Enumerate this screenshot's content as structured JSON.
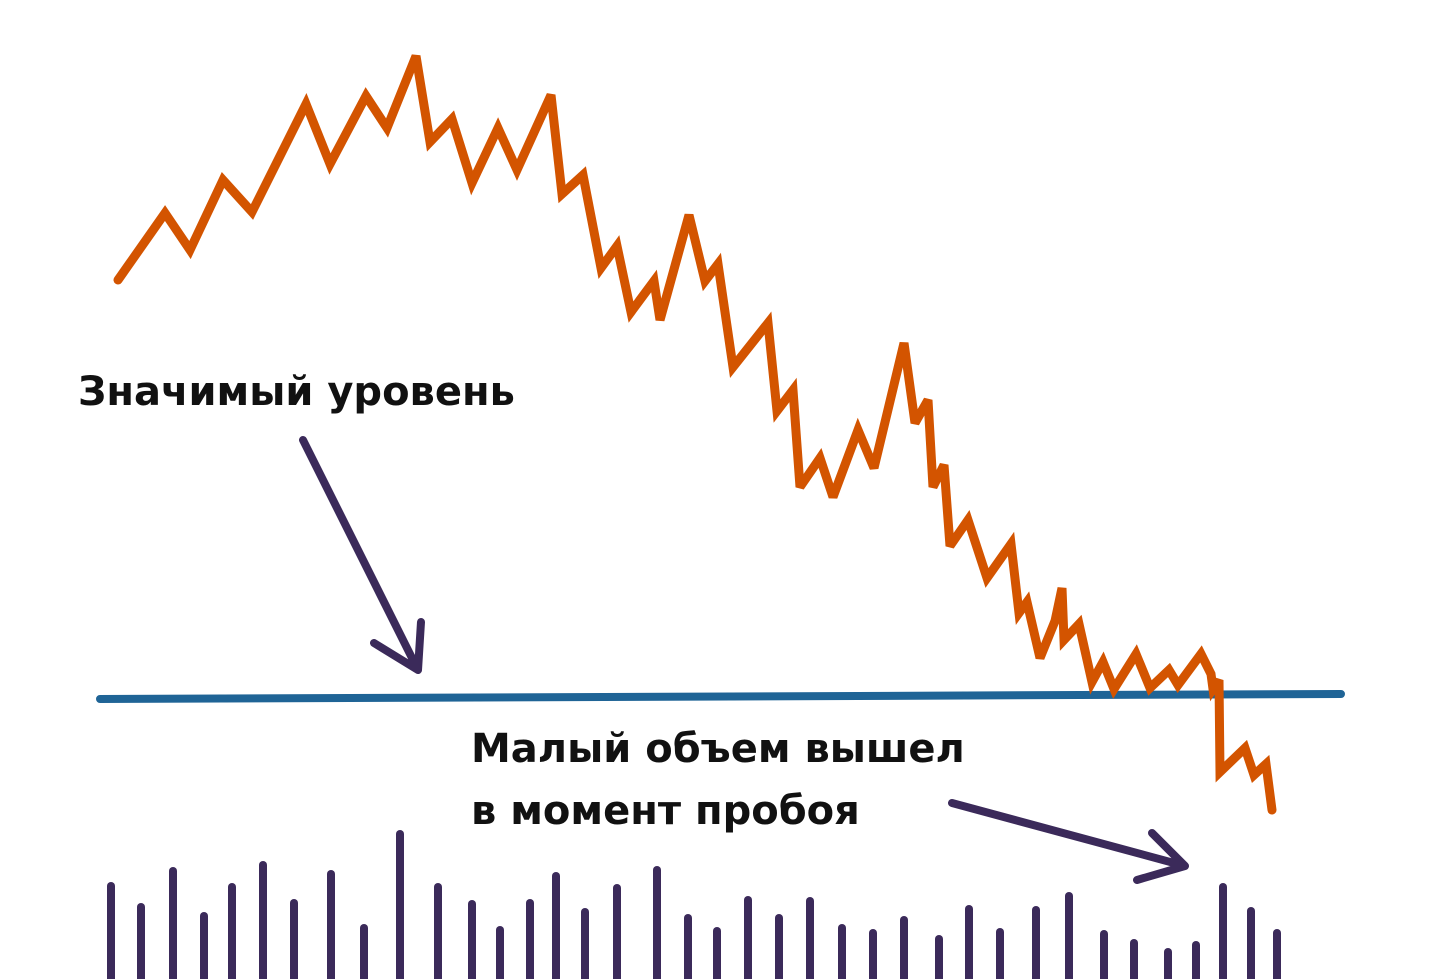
{
  "chart_data": {
    "type": "line",
    "title": "",
    "xlabel": "",
    "ylabel": "",
    "grid": false,
    "legend": "none",
    "colors": {
      "price": "#d35400",
      "level": "#1f6496",
      "volume": "#3b2a5a",
      "arrow": "#3b2a5a"
    },
    "price": [
      [
        118,
        280
      ],
      [
        165,
        213
      ],
      [
        190,
        250
      ],
      [
        223,
        180
      ],
      [
        252,
        212
      ],
      [
        306,
        104
      ],
      [
        330,
        164
      ],
      [
        366,
        96
      ],
      [
        387,
        128
      ],
      [
        416,
        56
      ],
      [
        430,
        142
      ],
      [
        452,
        119
      ],
      [
        472,
        183
      ],
      [
        498,
        128
      ],
      [
        517,
        170
      ],
      [
        551,
        95
      ],
      [
        562,
        194
      ],
      [
        583,
        175
      ],
      [
        601,
        268
      ],
      [
        617,
        246
      ],
      [
        631,
        312
      ],
      [
        654,
        281
      ],
      [
        660,
        320
      ],
      [
        689,
        215
      ],
      [
        705,
        281
      ],
      [
        718,
        264
      ],
      [
        733,
        367
      ],
      [
        768,
        323
      ],
      [
        777,
        411
      ],
      [
        793,
        390
      ],
      [
        800,
        487
      ],
      [
        820,
        458
      ],
      [
        833,
        497
      ],
      [
        858,
        430
      ],
      [
        874,
        468
      ],
      [
        904,
        343
      ],
      [
        915,
        423
      ],
      [
        928,
        400
      ],
      [
        933,
        487
      ],
      [
        944,
        465
      ],
      [
        950,
        546
      ],
      [
        968,
        520
      ],
      [
        987,
        578
      ],
      [
        1011,
        544
      ],
      [
        1019,
        613
      ],
      [
        1027,
        602
      ],
      [
        1040,
        658
      ],
      [
        1055,
        621
      ],
      [
        1062,
        588
      ],
      [
        1064,
        640
      ],
      [
        1079,
        624
      ],
      [
        1092,
        682
      ],
      [
        1103,
        662
      ],
      [
        1114,
        689
      ],
      [
        1136,
        654
      ],
      [
        1150,
        688
      ],
      [
        1169,
        670
      ],
      [
        1178,
        685
      ],
      [
        1201,
        654
      ],
      [
        1211,
        674
      ],
      [
        1213,
        689
      ],
      [
        1219,
        680
      ],
      [
        1220,
        772
      ],
      [
        1245,
        748
      ],
      [
        1254,
        775
      ],
      [
        1266,
        764
      ],
      [
        1272,
        810
      ]
    ],
    "level_y": 696,
    "volume_x": [
      111,
      141,
      173,
      204,
      232,
      263,
      294,
      331,
      364,
      400,
      438,
      472,
      500,
      530,
      556,
      585,
      617,
      657,
      688,
      717,
      748,
      779,
      810,
      842,
      873,
      904,
      939,
      969,
      1000,
      1036,
      1069,
      1104,
      1134,
      1168,
      1196,
      1223,
      1251,
      1277
    ],
    "volume": [
      93,
      72,
      108,
      63,
      92,
      114,
      76,
      105,
      51,
      145,
      92,
      75,
      49,
      76,
      103,
      67,
      91,
      109,
      61,
      48,
      79,
      61,
      78,
      51,
      46,
      59,
      40,
      70,
      47,
      69,
      83,
      45,
      36,
      27,
      34,
      92,
      68,
      46
    ]
  },
  "annotations": {
    "level_label": "Значимый уровень",
    "volume_label_line1": "Малый объем вышел",
    "volume_label_line2": "в момент пробоя"
  }
}
